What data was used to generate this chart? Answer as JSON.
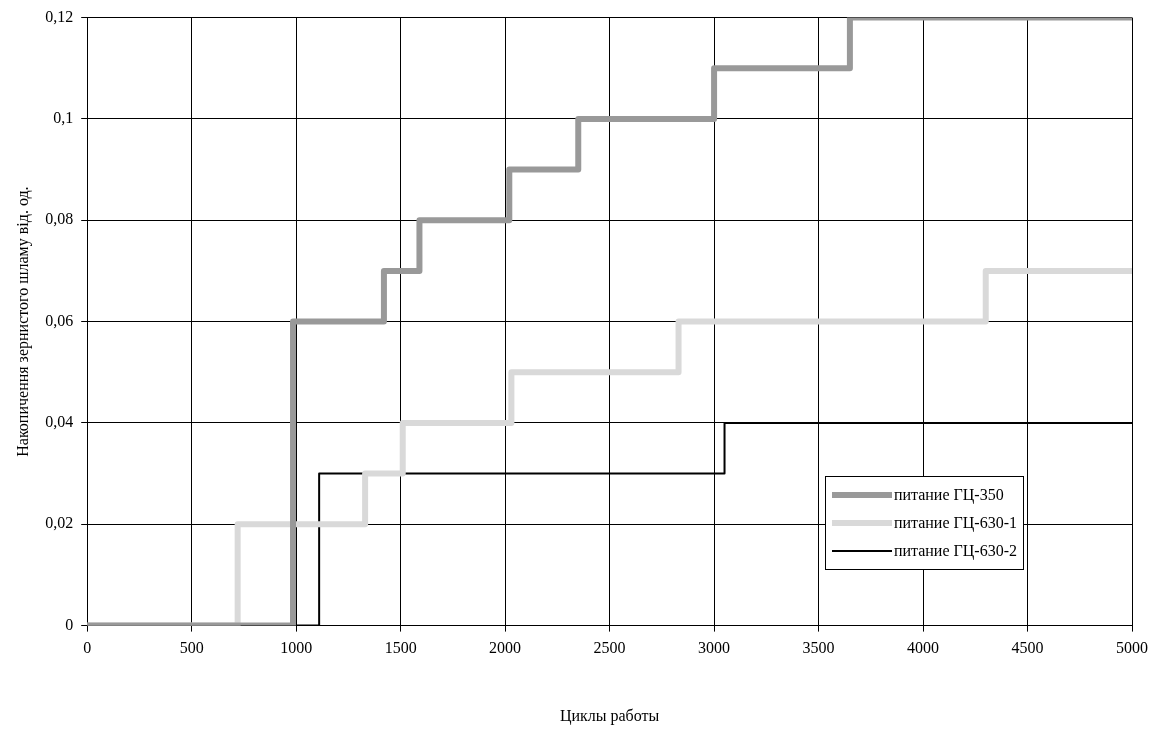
{
  "chart_data": {
    "type": "step",
    "xlabel": "Циклы работы",
    "ylabel": "Накопичення зернистого шламу від. од.",
    "series": [
      {
        "name": "питание ГЦ-350",
        "color": "#999999",
        "x": [
          0,
          985,
          1420,
          1590,
          2020,
          2350,
          3000,
          3650,
          5000
        ],
        "values": [
          0,
          0.06,
          0.07,
          0.08,
          0.09,
          0.1,
          0.11,
          0.12,
          0.12
        ]
      },
      {
        "name": "питание ГЦ-630-1",
        "color": "#d9d9d9",
        "x": [
          0,
          720,
          1330,
          1510,
          2030,
          2830,
          4300,
          5000
        ],
        "values": [
          0,
          0.02,
          0.03,
          0.04,
          0.05,
          0.06,
          0.07,
          0.07
        ]
      },
      {
        "name": "питание ГЦ-630-2",
        "color": "#000000",
        "x": [
          0,
          1110,
          3050,
          5000
        ],
        "values": [
          0,
          0.03,
          0.04,
          0.04
        ]
      }
    ],
    "xlim": [
      0,
      5000
    ],
    "xticks": [
      0,
      500,
      1000,
      1500,
      2000,
      2500,
      3000,
      3500,
      4000,
      4500,
      5000
    ],
    "ylim": [
      0,
      0.12
    ],
    "yticks": [
      0,
      {
        "value": 0.02,
        "label": "0,02"
      },
      {
        "value": 0.04,
        "label": "0,04"
      },
      {
        "value": 0.06,
        "label": "0,06"
      },
      {
        "value": 0.08,
        "label": "0,08"
      },
      {
        "value": 0.1,
        "label": "0,1"
      },
      {
        "value": 0.12,
        "label": "0,12"
      }
    ],
    "grid": true,
    "legend": "bottom right",
    "marker": "none",
    "line_style": "solid"
  }
}
